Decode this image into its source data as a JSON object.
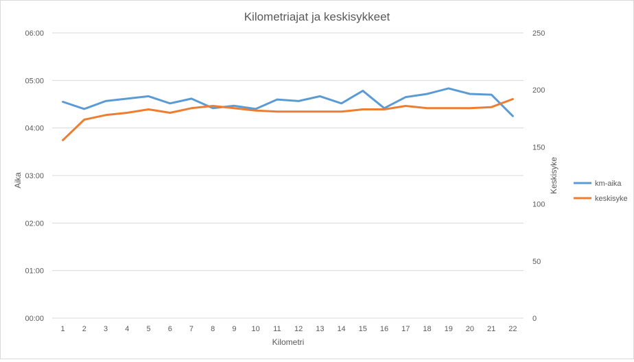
{
  "chart_data": {
    "type": "line",
    "title": "Kilometriajat ja keskisykkeet",
    "xlabel": "Kilometri",
    "ylabel_left": "Aika",
    "ylabel_right": "Keskisyke",
    "x": [
      1,
      2,
      3,
      4,
      5,
      6,
      7,
      8,
      9,
      10,
      11,
      12,
      13,
      14,
      15,
      16,
      17,
      18,
      19,
      20,
      21,
      22
    ],
    "y_left_ticks": [
      "00:00",
      "01:00",
      "02:00",
      "03:00",
      "04:00",
      "05:00",
      "06:00"
    ],
    "y_left_range_minutes": [
      0,
      360
    ],
    "y_right_ticks": [
      "0",
      "50",
      "100",
      "150",
      "200",
      "250"
    ],
    "y_right_range": [
      0,
      250
    ],
    "grid": true,
    "legend_position": "right",
    "series": [
      {
        "name": "km-aika",
        "axis": "left",
        "color": "#5b9bd5",
        "values_minutes": [
          273,
          264,
          274,
          277,
          280,
          271,
          277,
          265,
          268,
          264,
          276,
          274,
          280,
          271,
          287,
          265,
          279,
          283,
          290,
          283,
          282,
          255
        ]
      },
      {
        "name": "keskisyke",
        "axis": "right",
        "color": "#ed7d31",
        "values": [
          156,
          174,
          178,
          180,
          183,
          180,
          184,
          186,
          184,
          182,
          181,
          181,
          181,
          181,
          183,
          183,
          186,
          184,
          184,
          184,
          185,
          192
        ]
      }
    ]
  }
}
